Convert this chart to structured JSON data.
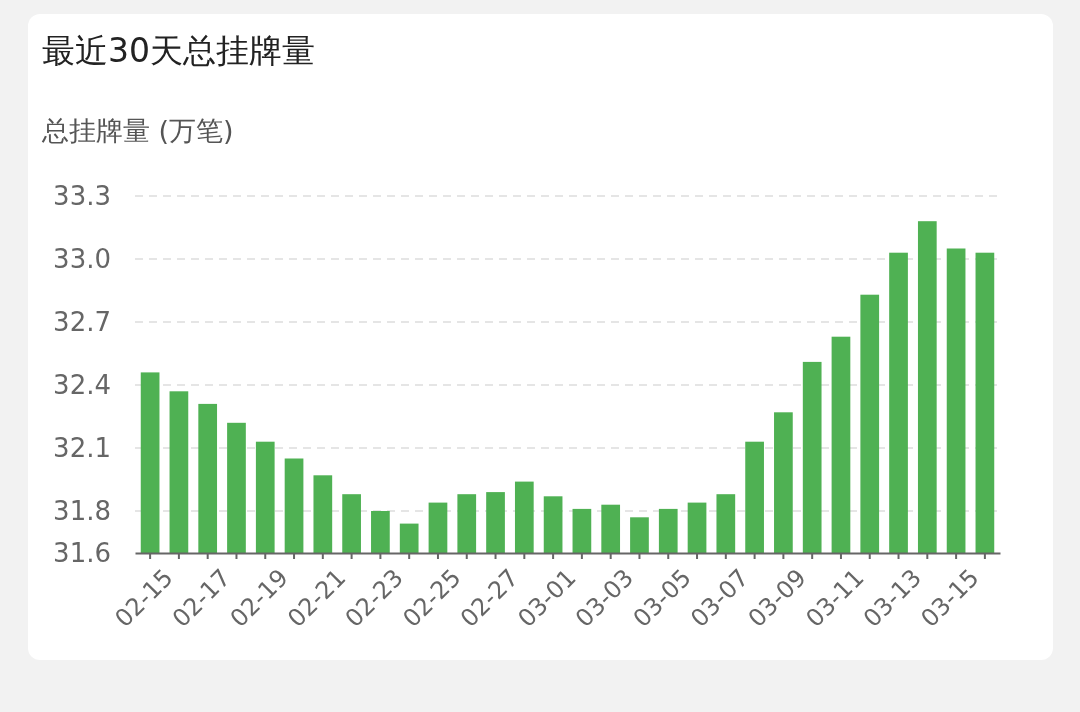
{
  "chart_data": {
    "type": "bar",
    "title": "最近30天总挂牌量",
    "ylabel": "总挂牌量 (万笔)",
    "categories": [
      "02-15",
      null,
      "02-17",
      null,
      "02-19",
      null,
      "02-21",
      null,
      "02-23",
      null,
      "02-25",
      null,
      "02-27",
      null,
      "03-01",
      null,
      "03-03",
      null,
      "03-05",
      null,
      "03-07",
      null,
      "03-09",
      null,
      "03-11",
      null,
      "03-13",
      null,
      "03-15",
      null
    ],
    "values": [
      32.46,
      32.37,
      32.31,
      32.22,
      32.13,
      32.05,
      31.97,
      31.88,
      31.8,
      31.74,
      31.84,
      31.88,
      31.89,
      31.94,
      31.87,
      31.81,
      31.83,
      31.77,
      31.81,
      31.84,
      31.88,
      32.13,
      32.27,
      32.51,
      32.63,
      32.83,
      33.03,
      33.18,
      33.05,
      33.03
    ],
    "color": "#4fb153",
    "ylim": [
      31.6,
      33.3
    ],
    "yticks": [
      31.6,
      31.8,
      32.1,
      32.4,
      32.7,
      {
        "value": 33,
        "label": "33.0"
      },
      33.3
    ],
    "grid": "y"
  }
}
